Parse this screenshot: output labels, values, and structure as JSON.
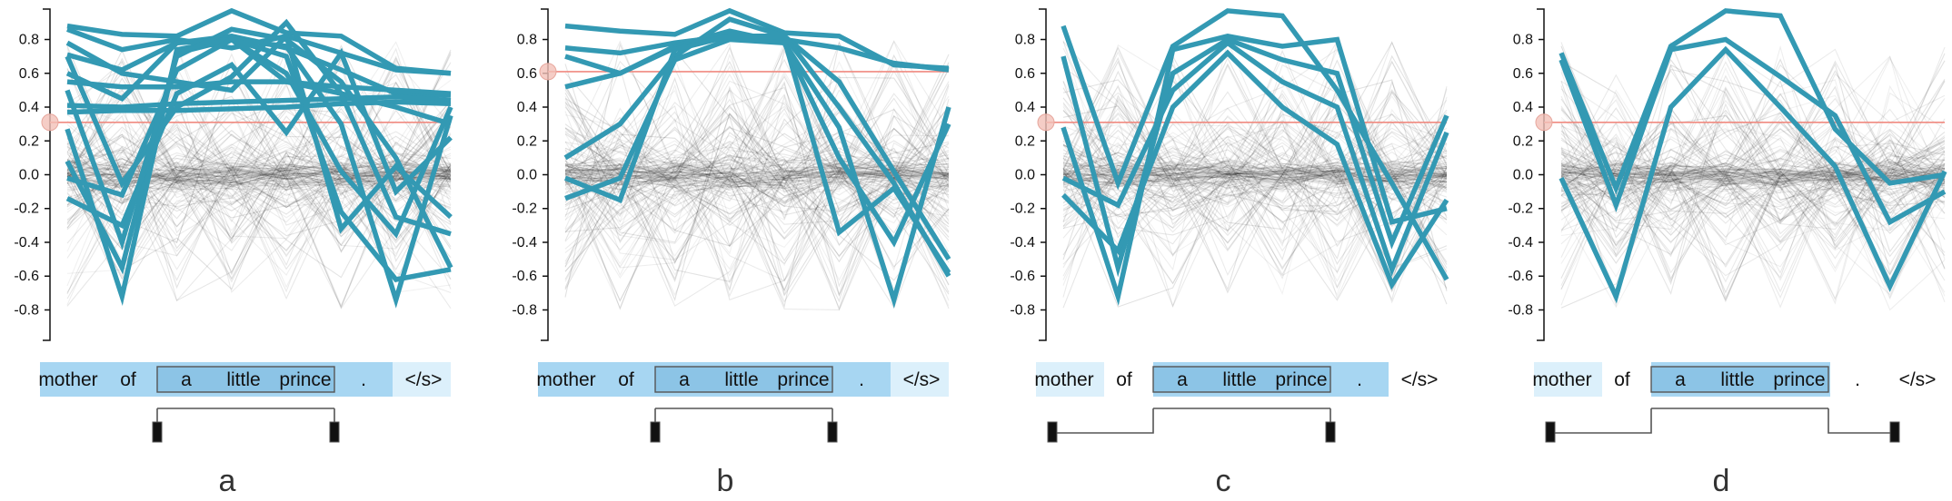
{
  "chart_data": {
    "type": "line",
    "y_ticks": [
      "0.8",
      "0.6",
      "0.4",
      "0.2",
      "0.0",
      "-0.2",
      "-0.4",
      "-0.6",
      "-0.8"
    ],
    "y_tick_values": [
      0.8,
      0.6,
      0.4,
      0.2,
      0.0,
      -0.2,
      -0.4,
      -0.6,
      -0.8
    ],
    "ylim": [
      -0.98,
      0.98
    ],
    "tokens": [
      "mother",
      "of",
      "a",
      "little",
      "prince",
      ".",
      "</s>"
    ],
    "panels": [
      {
        "label": "a",
        "threshold": 0.31,
        "token_highlight": [
          "strong",
          "strong",
          "strong",
          "strong",
          "strong",
          "strong",
          "light"
        ],
        "phrase_box": [
          2,
          4
        ],
        "bracket": {
          "left": "cap",
          "right": "cap",
          "left_token": 2,
          "right_token": 4
        },
        "highlighted_series": [
          {
            "values": [
              0.88,
              0.83,
              0.82,
              0.97,
              0.84,
              0.82,
              0.63,
              0.6
            ]
          },
          {
            "values": [
              0.86,
              0.74,
              0.8,
              0.75,
              0.82,
              0.72,
              0.62,
              0.6
            ]
          },
          {
            "values": [
              0.71,
              0.62,
              0.78,
              0.82,
              0.75,
              0.62,
              0.48,
              0.47
            ]
          },
          {
            "values": [
              0.55,
              0.52,
              0.52,
              0.55,
              0.55,
              0.52,
              0.5,
              0.48
            ]
          },
          {
            "values": [
              0.41,
              0.4,
              0.42,
              0.43,
              0.44,
              0.45,
              0.46,
              0.44
            ]
          },
          {
            "values": [
              0.37,
              0.38,
              0.38,
              0.39,
              0.4,
              0.42,
              0.43,
              0.42
            ]
          },
          {
            "values": [
              0.6,
              0.45,
              0.78,
              0.8,
              0.55,
              0.48,
              0.4,
              0.3
            ]
          },
          {
            "values": [
              0.08,
              -0.55,
              0.72,
              0.8,
              0.6,
              0.02,
              -0.35,
              0.4
            ]
          },
          {
            "values": [
              0.27,
              -0.72,
              0.74,
              0.8,
              0.76,
              0.3,
              -0.74,
              0.35
            ]
          },
          {
            "values": [
              -0.02,
              -0.12,
              0.62,
              0.8,
              0.7,
              -0.22,
              -0.62,
              -0.56
            ]
          },
          {
            "values": [
              -0.14,
              -0.3,
              0.48,
              0.65,
              0.25,
              0.72,
              -0.1,
              0.22
            ]
          },
          {
            "values": [
              0.78,
              0.6,
              0.55,
              0.5,
              0.82,
              -0.32,
              0.05,
              -0.25
            ]
          },
          {
            "values": [
              0.7,
              -0.05,
              0.4,
              0.58,
              0.9,
              0.48,
              -0.25,
              -0.35
            ]
          },
          {
            "values": [
              0.5,
              -0.4,
              0.7,
              0.86,
              0.8,
              0.55,
              0.1,
              -0.55
            ]
          }
        ]
      },
      {
        "label": "b",
        "threshold": 0.61,
        "token_highlight": [
          "strong",
          "strong",
          "strong",
          "strong",
          "strong",
          "strong",
          "light"
        ],
        "phrase_box": [
          2,
          4
        ],
        "bracket": {
          "left": "cap",
          "right": "cap",
          "left_token": 2,
          "right_token": 4
        },
        "highlighted_series": [
          {
            "values": [
              0.88,
              0.85,
              0.83,
              0.97,
              0.84,
              0.82,
              0.65,
              0.63
            ]
          },
          {
            "values": [
              0.75,
              0.72,
              0.78,
              0.82,
              0.8,
              0.75,
              0.66,
              0.62
            ]
          },
          {
            "values": [
              0.7,
              0.6,
              0.76,
              0.85,
              0.78,
              0.28,
              -0.74,
              0.4
            ]
          },
          {
            "values": [
              0.52,
              0.6,
              0.75,
              0.82,
              0.8,
              -0.34,
              -0.08,
              -0.58
            ]
          },
          {
            "values": [
              0.1,
              0.3,
              0.7,
              0.92,
              0.82,
              0.55,
              0.02,
              -0.5
            ]
          },
          {
            "values": [
              -0.14,
              -0.02,
              0.68,
              0.8,
              0.78,
              0.1,
              -0.4,
              0.3
            ]
          },
          {
            "values": [
              -0.02,
              -0.15,
              0.74,
              0.82,
              0.82,
              0.4,
              -0.05,
              -0.6
            ]
          }
        ]
      },
      {
        "label": "c",
        "threshold": 0.31,
        "token_highlight": [
          "light",
          "none",
          "strong",
          "strong",
          "strong",
          "strong",
          "none"
        ],
        "phrase_box": [
          2,
          4
        ],
        "bracket": {
          "left": "step",
          "right": "cap",
          "left_token": 0,
          "right_token": 4
        },
        "highlighted_series": [
          {
            "values": [
              0.88,
              -0.05,
              0.76,
              0.97,
              0.94,
              0.5,
              -0.05,
              -0.62
            ]
          },
          {
            "values": [
              0.28,
              -0.72,
              0.74,
              0.82,
              0.76,
              0.8,
              -0.28,
              -0.2
            ]
          },
          {
            "values": [
              0.7,
              -0.55,
              0.6,
              0.8,
              0.68,
              0.6,
              -0.4,
              0.35
            ]
          },
          {
            "values": [
              -0.02,
              -0.18,
              0.5,
              0.78,
              0.55,
              0.4,
              -0.56,
              0.25
            ]
          },
          {
            "values": [
              -0.12,
              -0.45,
              0.4,
              0.72,
              0.4,
              0.18,
              -0.65,
              -0.15
            ]
          }
        ]
      },
      {
        "label": "d",
        "threshold": 0.31,
        "token_highlight": [
          "light",
          "none",
          "strong",
          "strong",
          "strong",
          "none",
          "none"
        ],
        "phrase_box": [
          2,
          4
        ],
        "bracket": {
          "left": "step",
          "right": "step",
          "left_token": 0,
          "right_token": 6
        },
        "highlighted_series": [
          {
            "values": [
              0.72,
              -0.08,
              0.76,
              0.97,
              0.94,
              0.27,
              -0.05,
              0.0
            ]
          },
          {
            "values": [
              0.68,
              -0.18,
              0.74,
              0.8,
              0.58,
              0.35,
              -0.28,
              -0.1
            ]
          },
          {
            "values": [
              -0.02,
              -0.72,
              0.4,
              0.74,
              0.4,
              0.05,
              -0.66,
              0.02
            ]
          }
        ]
      }
    ]
  },
  "colors": {
    "highlight_line": "#3399b3",
    "background_line": "#000000",
    "threshold_line": "#f08a80",
    "threshold_knob": "#f2c0b8",
    "token_strong": "#a7d6f2",
    "token_light": "#dcf0fb",
    "phrase_box_fill": "#8cc4e6",
    "phrase_box_stroke": "#555555"
  }
}
